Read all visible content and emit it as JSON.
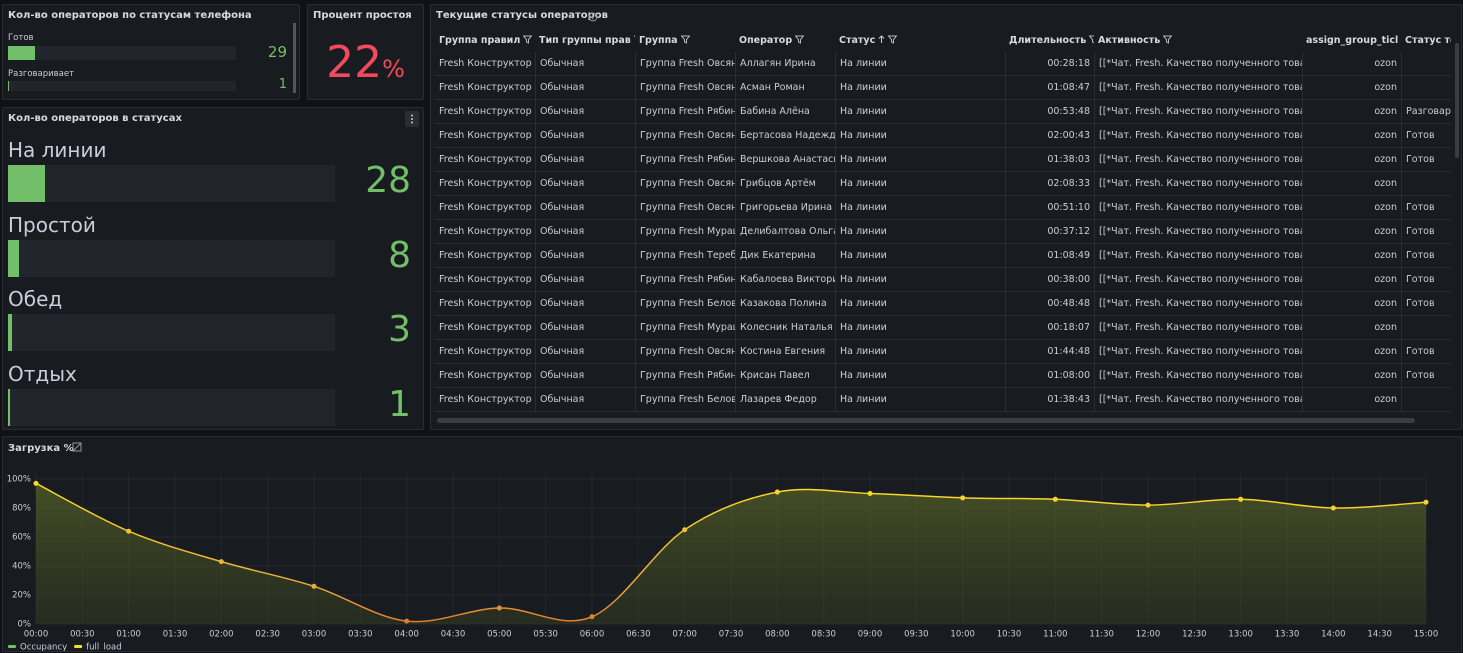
{
  "phone_status": {
    "title": "Кол-во операторов по статусам телефона",
    "items": [
      {
        "label": "Готов",
        "value": 29
      },
      {
        "label": "Разговаривает",
        "value": 1
      }
    ]
  },
  "idle": {
    "title": "Процент простоя",
    "value": 22,
    "unit": "%"
  },
  "statuses": {
    "title": "Кол-во операторов в статусах",
    "items": [
      {
        "label": "На линии",
        "value": 28
      },
      {
        "label": "Простой",
        "value": 8
      },
      {
        "label": "Обед",
        "value": 3
      },
      {
        "label": "Отдых",
        "value": 1
      }
    ]
  },
  "table": {
    "title": "Текущие статусы операторов",
    "columns": [
      "Группа правил",
      "Тип группы прав",
      "Группа",
      "Оператор",
      "Статус",
      "Длительность",
      "Активность",
      "assign_group_ticl",
      "Статус теле"
    ],
    "rows": [
      [
        "Fresh Конструктор о",
        "Обычная",
        "Группа Fresh Овсян",
        "Аллагян Ирина",
        "На линии",
        "00:28:18",
        "[[*Чат. Fresh. Качество полученного товара",
        "ozon",
        null
      ],
      [
        "Fresh Конструктор о",
        "Обычная",
        "Группа Fresh Овсян",
        "Асман Роман",
        "На линии",
        "01:08:47",
        "[[*Чат. Fresh. Качество полученного товара",
        "ozon",
        null
      ],
      [
        "Fresh Конструктор о",
        "Обычная",
        "Группа Fresh Рябинь",
        "Бабина Алёна",
        "На линии",
        "00:53:48",
        "[[*Чат. Fresh. Качество полученного товара",
        "ozon",
        "Разговарива"
      ],
      [
        "Fresh Конструктор о",
        "Обычная",
        "Группа Fresh Овсян",
        "Бертасова Надежда",
        "На линии",
        "02:00:43",
        "[[*Чат. Fresh. Качество полученного товара",
        "ozon",
        "Готов"
      ],
      [
        "Fresh Конструктор о",
        "Обычная",
        "Группа Fresh Рябинь",
        "Вершкова Анастасия",
        "На линии",
        "01:38:03",
        "[[*Чат. Fresh. Качество полученного товара",
        "ozon",
        "Готов"
      ],
      [
        "Fresh Конструктор о",
        "Обычная",
        "Группа Fresh Овсян",
        "Грибцов Артём",
        "На линии",
        "02:08:33",
        "[[*Чат. Fresh. Качество полученного товара",
        "ozon",
        null
      ],
      [
        "Fresh Конструктор о",
        "Обычная",
        "Группа Fresh Овсян",
        "Григорьева Ирина",
        "На линии",
        "00:51:10",
        "[[*Чат. Fresh. Качество полученного товара",
        "ozon",
        "Готов"
      ],
      [
        "Fresh Конструктор о",
        "Обычная",
        "Группа Fresh Мураш",
        "Делибалтова Ольга",
        "На линии",
        "00:37:12",
        "[[*Чат. Fresh. Качество полученного товара",
        "ozon",
        "Готов"
      ],
      [
        "Fresh Конструктор о",
        "Обычная",
        "Группа Fresh Тереб",
        "Дик Екатерина",
        "На линии",
        "01:08:49",
        "[[*Чат. Fresh. Качество полученного товара",
        "ozon",
        "Готов"
      ],
      [
        "Fresh Конструктор о",
        "Обычная",
        "Группа Fresh Рябинь",
        "Кабалоева Виктория",
        "На линии",
        "00:38:00",
        "[[*Чат. Fresh. Качество полученного товара",
        "ozon",
        "Готов"
      ],
      [
        "Fresh Конструктор о",
        "Обычная",
        "Группа Fresh Белова",
        "Казакова Полина",
        "На линии",
        "00:48:48",
        "[[*Чат. Fresh. Качество полученного товара",
        "ozon",
        "Готов"
      ],
      [
        "Fresh Конструктор о",
        "Обычная",
        "Группа Fresh Мураш",
        "Колесник Наталья",
        "На линии",
        "00:18:07",
        "[[*Чат. Fresh. Качество полученного товара",
        "ozon",
        null
      ],
      [
        "Fresh Конструктор о",
        "Обычная",
        "Группа Fresh Овсян",
        "Костина Евгения",
        "На линии",
        "01:44:48",
        "[[*Чат. Fresh. Качество полученного товара",
        "ozon",
        "Готов"
      ],
      [
        "Fresh Конструктор о",
        "Обычная",
        "Группа Fresh Рябинь",
        "Крисан Павел",
        "На линии",
        "01:08:00",
        "[[*Чат. Fresh. Качество полученного товара",
        "ozon",
        "Готов"
      ],
      [
        "Fresh Конструктор о",
        "Обычная",
        "Группа Fresh Белова",
        "Лазарев Федор",
        "На линии",
        "01:38:43",
        "[[*Чат. Fresh. Качество полученного товара",
        "ozon",
        null
      ]
    ]
  },
  "chart_data": {
    "type": "line",
    "title": "Загрузка %",
    "x": [
      "00:00",
      "01:00",
      "02:00",
      "03:00",
      "04:00",
      "05:00",
      "06:00",
      "07:00",
      "08:00",
      "09:00",
      "10:00",
      "11:00",
      "12:00",
      "13:00",
      "14:00",
      "15:00"
    ],
    "xticks": [
      "00:00",
      "00:30",
      "01:00",
      "01:30",
      "02:00",
      "02:30",
      "03:00",
      "03:30",
      "04:00",
      "04:30",
      "05:00",
      "05:30",
      "06:00",
      "06:30",
      "07:00",
      "07:30",
      "08:00",
      "08:30",
      "09:00",
      "09:30",
      "10:00",
      "10:30",
      "11:00",
      "11:30",
      "12:00",
      "12:30",
      "13:00",
      "13:30",
      "14:00",
      "14:30",
      "15:00"
    ],
    "ylim": [
      0,
      100
    ],
    "yticks": [
      {
        "value": 0,
        "label": "0%"
      },
      {
        "value": 20,
        "label": "20%"
      },
      {
        "value": 40,
        "label": "40%"
      },
      {
        "value": 60,
        "label": "60%"
      },
      {
        "value": 80,
        "label": "80%"
      },
      {
        "value": 100,
        "label": "100%"
      }
    ],
    "grid": true,
    "series": [
      {
        "name": "Occupancy",
        "color": "#73bf69",
        "values": [
          null,
          null,
          null,
          null,
          null,
          null,
          null,
          null,
          null,
          null,
          null,
          null,
          null,
          null,
          null,
          null
        ]
      },
      {
        "name": "full_load",
        "color": "#fade2a",
        "values": [
          97,
          64,
          43,
          26,
          2,
          11,
          5,
          65,
          91,
          90,
          87,
          86,
          82,
          86,
          80,
          84
        ]
      }
    ]
  }
}
